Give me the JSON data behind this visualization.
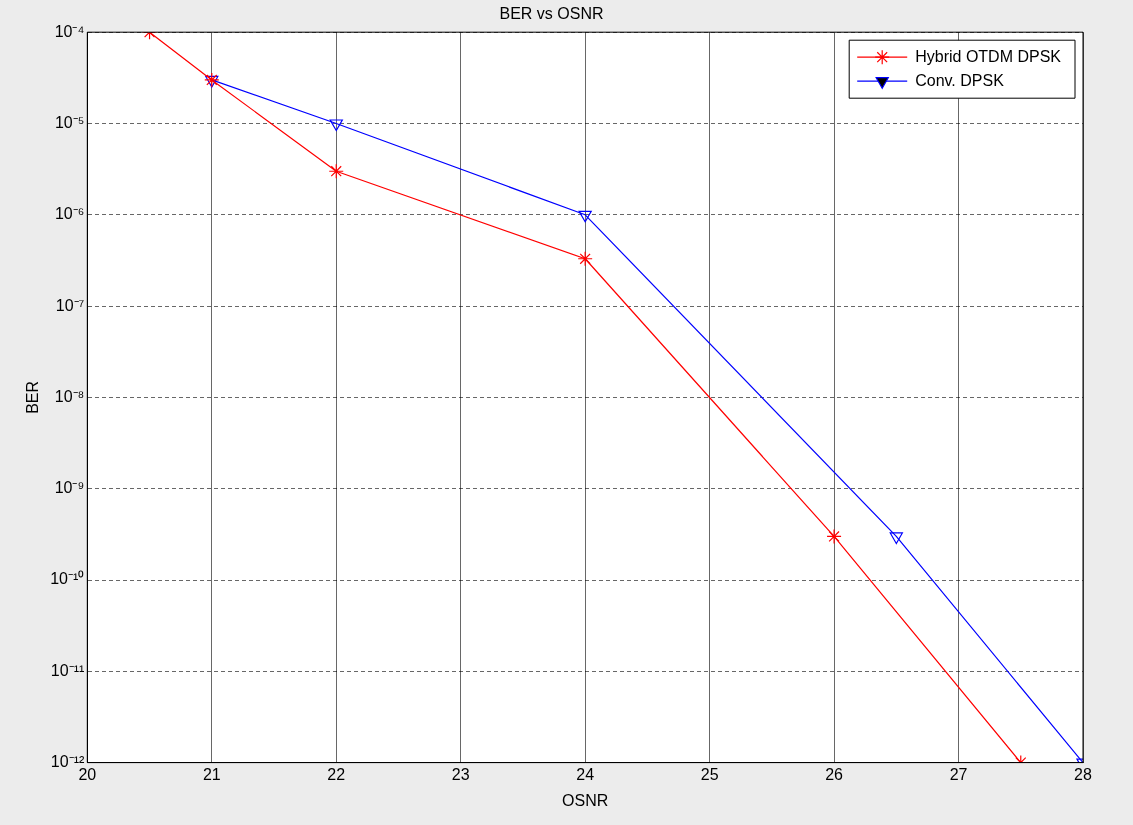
{
  "chart_data": {
    "type": "line",
    "title": "BER vs OSNR",
    "xlabel": "OSNR",
    "ylabel": "BER",
    "series": [
      {
        "name": "Hybrid OTDM DPSK",
        "color": "#ff0000",
        "marker": "cross",
        "x": [
          20.5,
          21,
          22,
          24,
          26,
          27.5
        ],
        "values": [
          0.0001,
          3e-05,
          3e-06,
          3.3e-07,
          3e-10,
          1e-12
        ]
      },
      {
        "name": "Conv. DPSK",
        "color": "#0000ff",
        "marker": "triangle",
        "x": [
          21,
          22,
          24,
          26.5,
          28
        ],
        "values": [
          3e-05,
          1e-05,
          1e-06,
          3e-10,
          1e-12
        ]
      }
    ],
    "log": "y",
    "xlim": [
      20,
      28
    ],
    "xticks": [
      20,
      21,
      22,
      23,
      24,
      25,
      26,
      27,
      28
    ],
    "ylim": [
      1e-12,
      0.0001
    ],
    "yticks": [
      {
        "value": 1e-12,
        "label": "10⁻¹²"
      },
      {
        "value": 1e-11,
        "label": "10⁻¹¹"
      },
      {
        "value": 1e-10,
        "label": "10⁻¹⁰"
      },
      {
        "value": 1e-09,
        "label": "10⁻⁹"
      },
      {
        "value": 1e-08,
        "label": "10⁻⁸"
      },
      {
        "value": 1e-07,
        "label": "10⁻⁷"
      },
      {
        "value": 1e-06,
        "label": "10⁻⁶"
      },
      {
        "value": 1e-05,
        "label": "10⁻⁵"
      },
      {
        "value": 0.0001,
        "label": "10⁻⁴"
      }
    ],
    "grid": true,
    "legend": "top right",
    "line_style": "solid"
  }
}
